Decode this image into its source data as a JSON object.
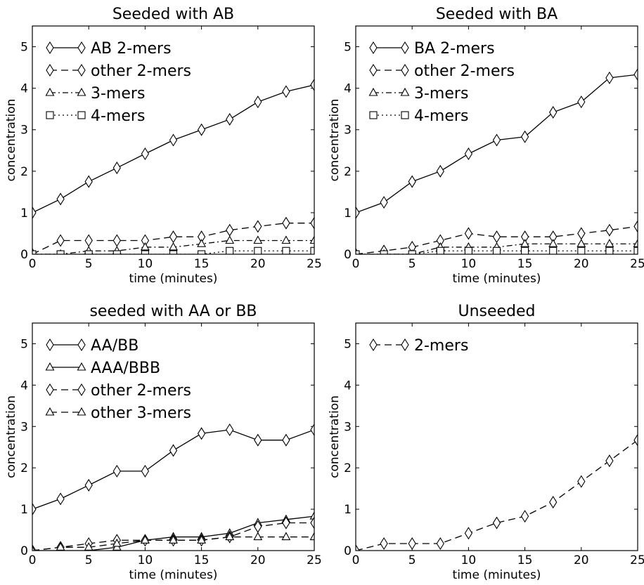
{
  "chart_data": [
    {
      "type": "line",
      "title": "Seeded with AB",
      "xlabel": "time (minutes)",
      "ylabel": "concentration",
      "xlim": [
        0,
        25
      ],
      "ylim": [
        0,
        5.5
      ],
      "xticks": [
        "0",
        "5",
        "10",
        "15",
        "20",
        "25"
      ],
      "yticks": [
        "0",
        "1",
        "2",
        "3",
        "4",
        "5"
      ],
      "legend_position": "top-left",
      "x": [
        0,
        2.5,
        5,
        7.5,
        10,
        12.5,
        15,
        17.5,
        20,
        22.5,
        25
      ],
      "series": [
        {
          "name": "AB 2-mers",
          "style": "solid",
          "marker": "diamond",
          "values": [
            1.0,
            1.33,
            1.75,
            2.08,
            2.42,
            2.75,
            3.0,
            3.25,
            3.67,
            3.92,
            4.08
          ]
        },
        {
          "name": "other 2-mers",
          "style": "dashed",
          "marker": "diamond",
          "values": [
            0.0,
            0.33,
            0.33,
            0.33,
            0.33,
            0.42,
            0.42,
            0.58,
            0.67,
            0.75,
            0.75
          ]
        },
        {
          "name": "3-mers",
          "style": "dashdot",
          "marker": "triangle",
          "values": [
            0.0,
            0.0,
            0.08,
            0.08,
            0.17,
            0.17,
            0.25,
            0.33,
            0.33,
            0.33,
            0.33
          ]
        },
        {
          "name": "4-mers",
          "style": "dotted",
          "marker": "square",
          "values": [
            0.0,
            0.0,
            0.0,
            0.0,
            0.0,
            0.0,
            0.0,
            0.08,
            0.08,
            0.08,
            0.08
          ]
        }
      ]
    },
    {
      "type": "line",
      "title": "Seeded with BA",
      "xlabel": "time (minutes)",
      "ylabel": "concentration",
      "xlim": [
        0,
        25
      ],
      "ylim": [
        0,
        5.5
      ],
      "xticks": [
        "0",
        "5",
        "10",
        "15",
        "20",
        "25"
      ],
      "yticks": [
        "0",
        "1",
        "2",
        "3",
        "4",
        "5"
      ],
      "legend_position": "top-left",
      "x": [
        0,
        2.5,
        5,
        7.5,
        10,
        12.5,
        15,
        17.5,
        20,
        22.5,
        25
      ],
      "series": [
        {
          "name": "BA 2-mers",
          "style": "solid",
          "marker": "diamond",
          "values": [
            1.0,
            1.25,
            1.75,
            2.0,
            2.42,
            2.75,
            2.83,
            3.42,
            3.67,
            4.25,
            4.33
          ]
        },
        {
          "name": "other 2-mers",
          "style": "dashed",
          "marker": "diamond",
          "values": [
            0.0,
            0.08,
            0.17,
            0.33,
            0.5,
            0.42,
            0.42,
            0.42,
            0.5,
            0.58,
            0.67
          ]
        },
        {
          "name": "3-mers",
          "style": "dashdot",
          "marker": "triangle",
          "values": [
            0.0,
            0.0,
            0.0,
            0.17,
            0.17,
            0.17,
            0.25,
            0.25,
            0.25,
            0.25,
            0.25
          ]
        },
        {
          "name": "4-mers",
          "style": "dotted",
          "marker": "square",
          "values": [
            0.0,
            0.0,
            0.0,
            0.08,
            0.08,
            0.08,
            0.08,
            0.08,
            0.08,
            0.08,
            0.08
          ]
        }
      ]
    },
    {
      "type": "line",
      "title": "seeded with AA or BB",
      "xlabel": "time (minutes)",
      "ylabel": "concentration",
      "xlim": [
        0,
        25
      ],
      "ylim": [
        0,
        5.5
      ],
      "xticks": [
        "0",
        "5",
        "10",
        "15",
        "20",
        "25"
      ],
      "yticks": [
        "0",
        "1",
        "2",
        "3",
        "4",
        "5"
      ],
      "legend_position": "top-left",
      "x": [
        0,
        2.5,
        5,
        7.5,
        10,
        12.5,
        15,
        17.5,
        20,
        22.5,
        25
      ],
      "series": [
        {
          "name": "AA/BB",
          "style": "solid",
          "marker": "diamond",
          "values": [
            1.0,
            1.25,
            1.58,
            1.92,
            1.92,
            2.42,
            2.83,
            2.92,
            2.67,
            2.67,
            2.92
          ]
        },
        {
          "name": "AAA/BBB",
          "style": "solid",
          "marker": "triangle",
          "values": [
            0.0,
            0.0,
            0.0,
            0.08,
            0.25,
            0.33,
            0.33,
            0.42,
            0.67,
            0.75,
            0.83
          ]
        },
        {
          "name": "other 2-mers",
          "style": "dashed",
          "marker": "diamond",
          "values": [
            0.0,
            0.08,
            0.17,
            0.25,
            0.25,
            0.25,
            0.25,
            0.33,
            0.58,
            0.67,
            0.67
          ]
        },
        {
          "name": "other 3-mers",
          "style": "dashed",
          "marker": "triangle",
          "values": [
            0.0,
            0.08,
            0.08,
            0.17,
            0.25,
            0.25,
            0.25,
            0.33,
            0.33,
            0.33,
            0.33
          ]
        }
      ]
    },
    {
      "type": "line",
      "title": "Unseeded",
      "xlabel": "time (minutes)",
      "ylabel": "concentration",
      "xlim": [
        0,
        25
      ],
      "ylim": [
        0,
        5.5
      ],
      "xticks": [
        "0",
        "5",
        "10",
        "15",
        "20",
        "25"
      ],
      "yticks": [
        "0",
        "1",
        "2",
        "3",
        "4",
        "5"
      ],
      "legend_position": "top-left",
      "x": [
        0,
        2.5,
        5,
        7.5,
        10,
        12.5,
        15,
        17.5,
        20,
        22.5,
        25
      ],
      "series": [
        {
          "name": "2-mers",
          "style": "dashed",
          "marker": "diamond",
          "values": [
            0.0,
            0.17,
            0.17,
            0.17,
            0.42,
            0.67,
            0.83,
            1.17,
            1.67,
            2.17,
            2.67
          ]
        }
      ]
    }
  ]
}
